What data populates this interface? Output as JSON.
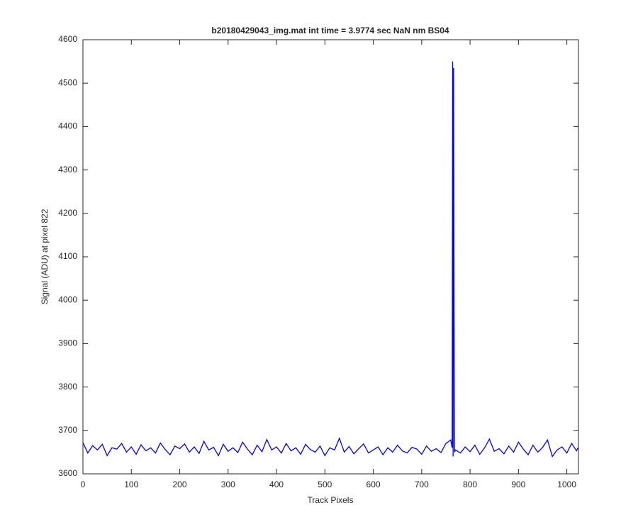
{
  "chart_data": {
    "type": "line",
    "title": "b20180429043_img.mat int time = 3.9774 sec  NaN nm BS04",
    "xlabel": "Track Pixels",
    "ylabel": "Signal (ADU) at pixel 822",
    "x": [
      0,
      10,
      20,
      30,
      40,
      50,
      60,
      70,
      80,
      90,
      100,
      110,
      120,
      130,
      140,
      150,
      160,
      170,
      180,
      190,
      200,
      210,
      220,
      230,
      240,
      250,
      260,
      270,
      280,
      290,
      300,
      310,
      320,
      330,
      340,
      350,
      360,
      370,
      380,
      390,
      400,
      410,
      420,
      430,
      440,
      450,
      460,
      470,
      480,
      490,
      500,
      510,
      520,
      530,
      540,
      550,
      560,
      570,
      580,
      590,
      600,
      610,
      620,
      630,
      640,
      650,
      660,
      670,
      680,
      690,
      700,
      710,
      720,
      730,
      740,
      750,
      760,
      763,
      764,
      765,
      766,
      767,
      768,
      770,
      780,
      790,
      800,
      810,
      820,
      830,
      840,
      850,
      860,
      870,
      880,
      890,
      900,
      910,
      920,
      930,
      940,
      950,
      960,
      970,
      980,
      990,
      1000,
      1010,
      1020,
      1023
    ],
    "series": [
      {
        "name": "signal",
        "color": "#0000ff",
        "values": [
          3672,
          3648,
          3665,
          3655,
          3668,
          3642,
          3660,
          3657,
          3670,
          3650,
          3662,
          3645,
          3667,
          3653,
          3660,
          3648,
          3671,
          3656,
          3644,
          3664,
          3658,
          3669,
          3650,
          3662,
          3647,
          3675,
          3655,
          3661,
          3642,
          3668,
          3652,
          3660,
          3649,
          3673,
          3657,
          3644,
          3666,
          3651,
          3679,
          3655,
          3662,
          3648,
          3670,
          3653,
          3660,
          3645,
          3668,
          3656,
          3650,
          3664,
          3642,
          3660,
          3655,
          3682,
          3650,
          3663,
          3646,
          3658,
          3669,
          3648,
          3655,
          3662,
          3644,
          3660,
          3650,
          3666,
          3653,
          3648,
          3661,
          3657,
          3645,
          3664,
          3652,
          3658,
          3649,
          3670,
          3678,
          3660,
          4550,
          3640,
          4535,
          3955,
          3650,
          3655,
          3648,
          3662,
          3651,
          3666,
          3645,
          3660,
          3680,
          3652,
          3658,
          3646,
          3664,
          3650,
          3673,
          3657,
          3644,
          3666,
          3650,
          3661,
          3678,
          3640,
          3655,
          3662,
          3648,
          3670,
          3653,
          3660
        ]
      }
    ],
    "xlim": [
      0,
      1024
    ],
    "ylim": [
      3600,
      4600
    ],
    "xticks": [
      0,
      100,
      200,
      300,
      400,
      500,
      600,
      700,
      800,
      900,
      1000
    ],
    "yticks": [
      3600,
      3700,
      3800,
      3900,
      4000,
      4100,
      4200,
      4300,
      4400,
      4500,
      4600
    ]
  }
}
